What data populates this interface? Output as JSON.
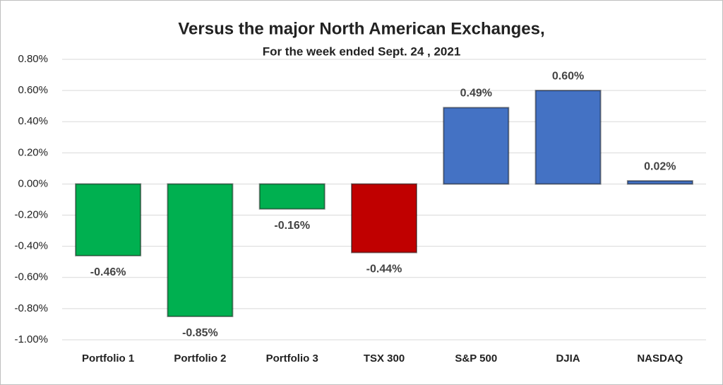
{
  "chart_data": {
    "type": "bar",
    "title": "Versus the major North American Exchanges,",
    "subtitle": "For the week ended Sept. 24 , 2021",
    "categories": [
      "Portfolio 1",
      "Portfolio 2",
      "Portfolio 3",
      "TSX 300",
      "S&P 500",
      "DJIA",
      "NASDAQ"
    ],
    "values": [
      -0.46,
      -0.85,
      -0.16,
      -0.44,
      0.49,
      0.6,
      0.02
    ],
    "value_labels": [
      "-0.46%",
      "-0.85%",
      "-0.16%",
      "-0.44%",
      "0.49%",
      "0.60%",
      "0.02%"
    ],
    "colors": [
      "#00b050",
      "#00b050",
      "#00b050",
      "#c00000",
      "#4472c4",
      "#4472c4",
      "#4472c4"
    ],
    "ylim": [
      -1.0,
      0.8
    ],
    "yticks": [
      {
        "value": -1.0,
        "label": "-1.00%"
      },
      {
        "value": -0.8,
        "label": "-0.80%"
      },
      {
        "value": -0.6,
        "label": "-0.60%"
      },
      {
        "value": -0.4,
        "label": "-0.40%"
      },
      {
        "value": -0.2,
        "label": "-0.20%"
      },
      {
        "value": 0,
        "label": "0.00%"
      },
      {
        "value": 0.2,
        "label": "0.20%"
      },
      {
        "value": 0.4,
        "label": "0.40%"
      },
      {
        "value": 0.6,
        "label": "0.60%"
      },
      {
        "value": 0.8,
        "label": "0.80%"
      }
    ],
    "grid": true
  }
}
